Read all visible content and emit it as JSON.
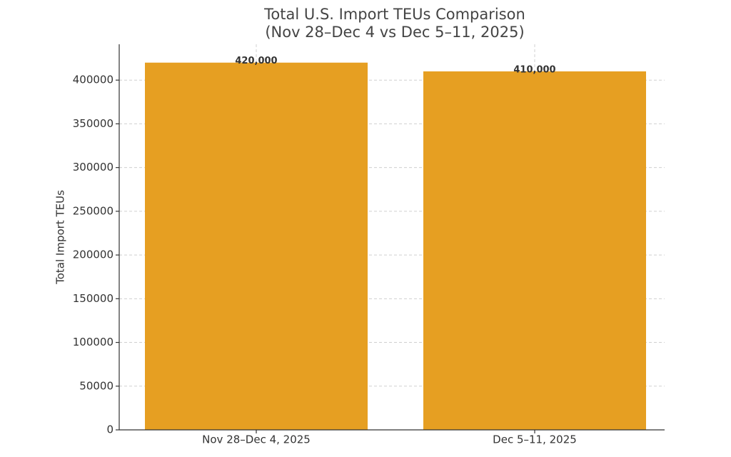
{
  "chart_data": {
    "type": "bar",
    "title": [
      "Total U.S. Import TEUs Comparison",
      "(Nov 28–Dec 4 vs Dec 5–11, 2025)"
    ],
    "y_label": "Total Import TEUs",
    "categories": [
      "Nov 28–Dec 4, 2025",
      "Dec 5–11, 2025"
    ],
    "values": [
      420000,
      410000
    ],
    "value_labels": [
      "420,000",
      "410,000"
    ],
    "color": "#e69f22",
    "ylim": [
      0,
      441000
    ],
    "yticks": [
      0,
      50000,
      100000,
      150000,
      200000,
      250000,
      300000,
      350000,
      400000
    ],
    "grid": true
  }
}
